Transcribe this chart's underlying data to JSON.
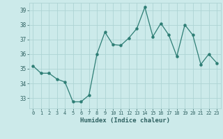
{
  "x": [
    0,
    1,
    2,
    3,
    4,
    5,
    6,
    7,
    8,
    9,
    10,
    11,
    12,
    13,
    14,
    15,
    16,
    17,
    18,
    19,
    20,
    21,
    22,
    23
  ],
  "y": [
    35.2,
    34.7,
    34.7,
    34.3,
    34.1,
    32.75,
    32.75,
    33.2,
    36.0,
    37.5,
    36.65,
    36.6,
    37.1,
    37.75,
    39.2,
    37.2,
    38.1,
    37.3,
    35.85,
    38.0,
    37.3,
    35.3,
    36.0,
    35.4
  ],
  "xlabel": "Humidex (Indice chaleur)",
  "ylim": [
    32.3,
    39.5
  ],
  "xlim": [
    -0.5,
    23.5
  ],
  "line_color": "#2d7d74",
  "marker_color": "#2d7d74",
  "bg_color": "#cceaea",
  "grid_color": "#aed4d4",
  "axis_label_color": "#2d6060",
  "tick_label_color": "#2d6060",
  "yticks": [
    33,
    34,
    35,
    36,
    37,
    38,
    39
  ],
  "xticks": [
    0,
    1,
    2,
    3,
    4,
    5,
    6,
    7,
    8,
    9,
    10,
    11,
    12,
    13,
    14,
    15,
    16,
    17,
    18,
    19,
    20,
    21,
    22,
    23
  ]
}
